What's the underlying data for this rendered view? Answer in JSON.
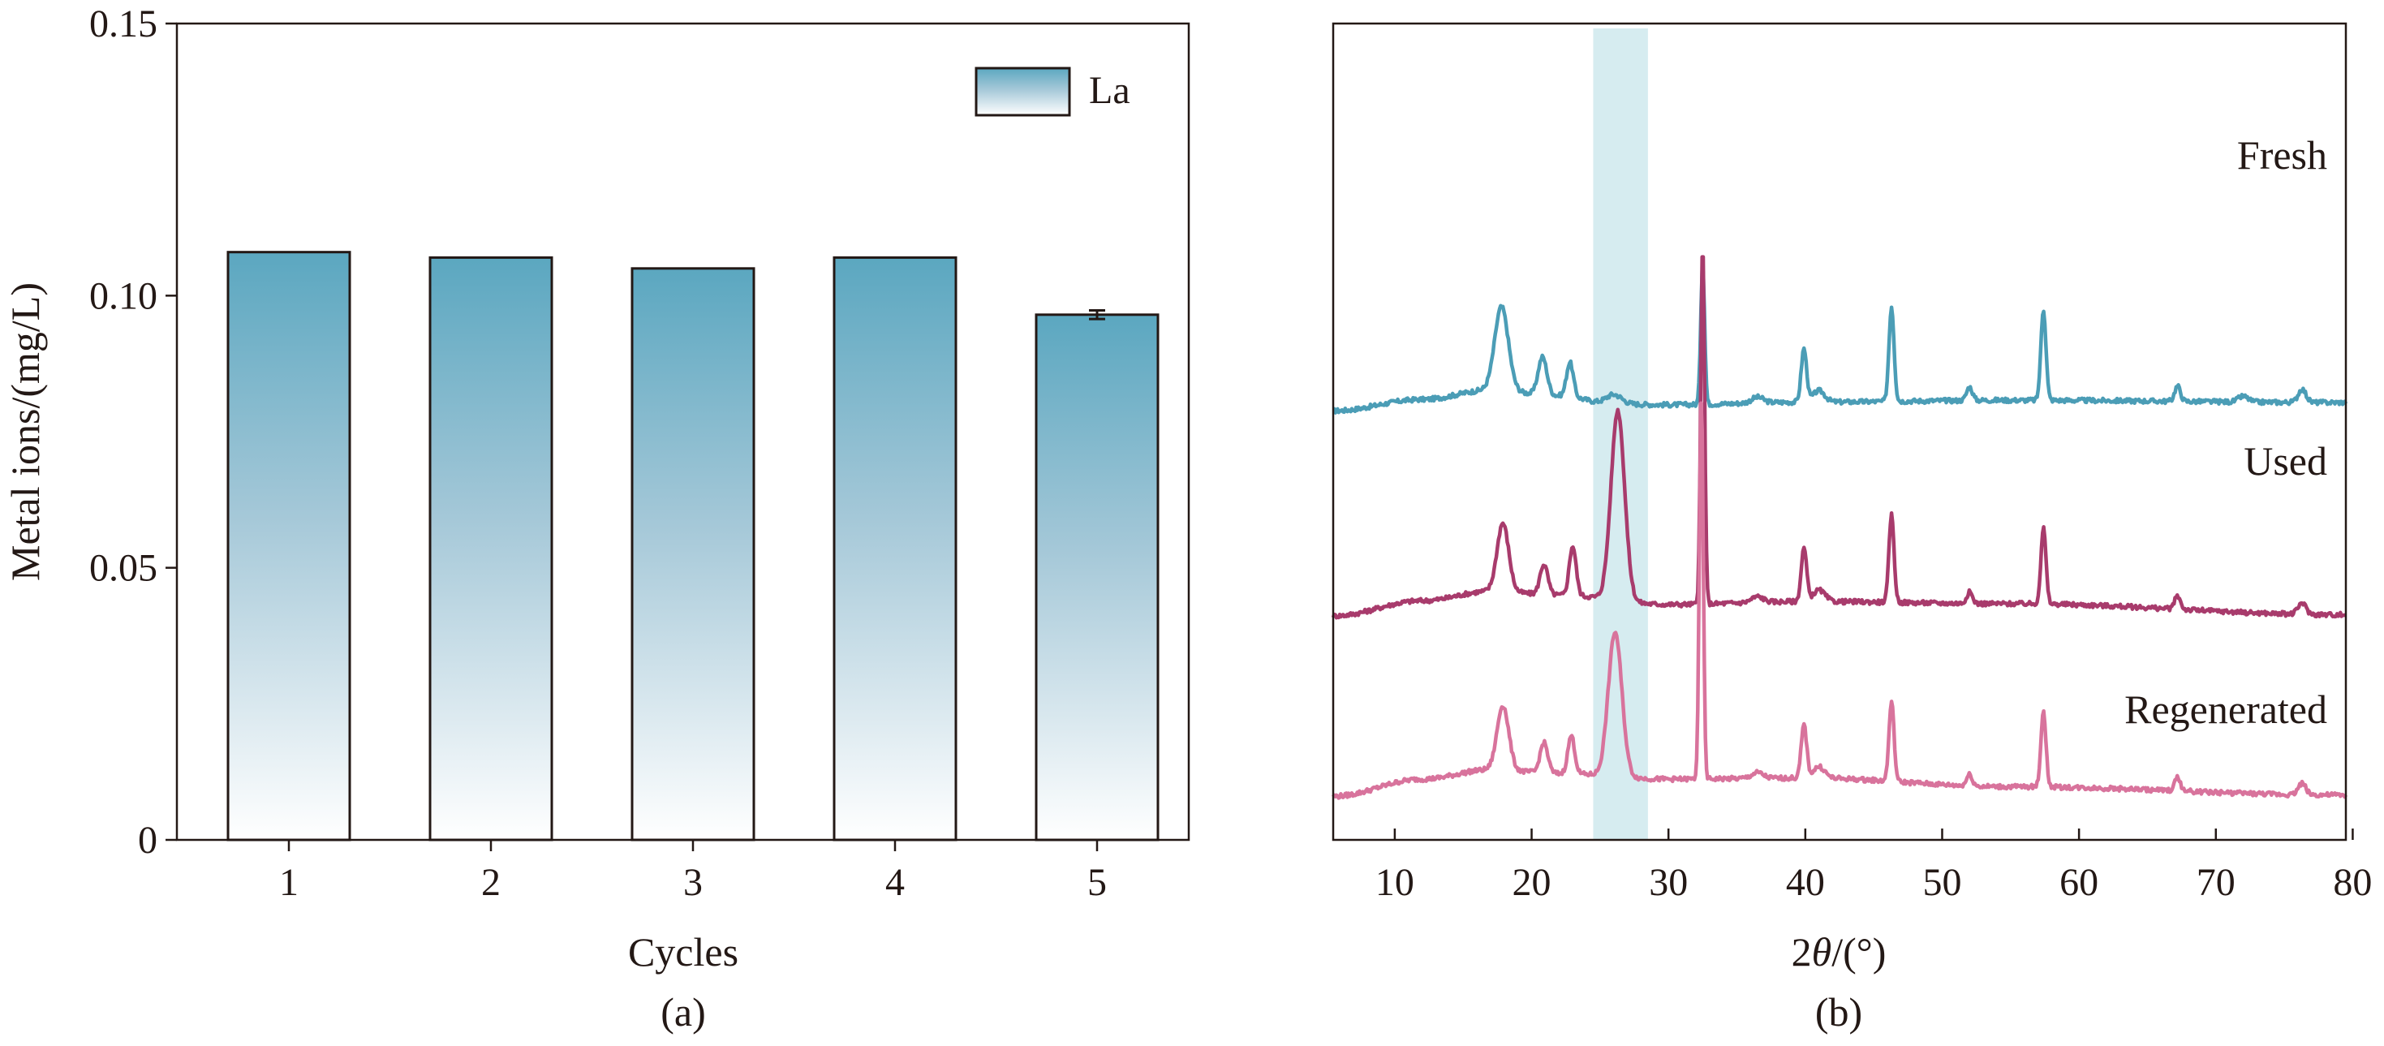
{
  "chart_data": [
    {
      "type": "bar",
      "panel_label": "(a)",
      "xlabel": "Cycles",
      "ylabel": "Metal ions/(mg/L)",
      "ylim": [
        0,
        0.15
      ],
      "yticks": [
        "0",
        "0.05",
        "0.10",
        "0.15"
      ],
      "categories": [
        "1",
        "2",
        "3",
        "4",
        "5"
      ],
      "series": [
        {
          "name": "La",
          "values": [
            0.108,
            0.107,
            0.105,
            0.107,
            0.0965
          ],
          "errors": [
            0,
            0,
            0,
            0,
            0.0008
          ]
        }
      ],
      "legend": "top-right",
      "colors": {
        "bar_top": "#5ba7c0",
        "bar_bottom": "#ffffff",
        "outline": "#231815"
      }
    },
    {
      "type": "line",
      "panel_label": "(b)",
      "xlabel_symbol": "θ",
      "xlabel_prefix": "2",
      "xlabel_suffix": "/(°)",
      "xlim": [
        5.5,
        79.5
      ],
      "xticks": [
        "10",
        "20",
        "30",
        "40",
        "50",
        "60",
        "70",
        "80"
      ],
      "highlight_band": [
        24.5,
        28.5
      ],
      "series": [
        {
          "name": "Fresh",
          "color": "#4b9db6",
          "baseline": 1.12,
          "bg": [
            [
              5.5,
              1.13
            ],
            [
              12,
              1.16
            ],
            [
              17,
              1.185
            ],
            [
              22,
              1.17
            ],
            [
              26,
              1.148
            ],
            [
              30,
              1.146
            ],
            [
              40,
              1.153
            ],
            [
              55,
              1.158
            ],
            [
              79.5,
              1.152
            ]
          ],
          "peaks": [
            [
              17.8,
              0.22,
              0.7
            ],
            [
              20.8,
              0.1,
              0.45
            ],
            [
              22.8,
              0.09,
              0.35
            ],
            [
              26,
              0.025,
              0.8
            ],
            [
              32.5,
              0.37,
              0.2
            ],
            [
              36.5,
              0.015,
              0.6
            ],
            [
              39.9,
              0.14,
              0.28
            ],
            [
              41,
              0.03,
              0.6
            ],
            [
              46.3,
              0.25,
              0.26
            ],
            [
              52,
              0.035,
              0.3
            ],
            [
              57.4,
              0.24,
              0.26
            ],
            [
              67.2,
              0.04,
              0.3
            ],
            [
              72,
              0.015,
              0.5
            ],
            [
              76.3,
              0.035,
              0.4
            ]
          ]
        },
        {
          "name": "Used",
          "color": "#a83b6c",
          "baseline": 0.59,
          "bg": [
            [
              5.5,
              0.59
            ],
            [
              12,
              0.63
            ],
            [
              17,
              0.655
            ],
            [
              22,
              0.645
            ],
            [
              30,
              0.62
            ],
            [
              40,
              0.628
            ],
            [
              55,
              0.622
            ],
            [
              79.5,
              0.593
            ]
          ],
          "peaks": [
            [
              17.9,
              0.18,
              0.6
            ],
            [
              20.9,
              0.08,
              0.4
            ],
            [
              23,
              0.13,
              0.35
            ],
            [
              26.3,
              0.5,
              0.7
            ],
            [
              32.5,
              0.95,
              0.2
            ],
            [
              36.5,
              0.015,
              0.6
            ],
            [
              39.9,
              0.14,
              0.28
            ],
            [
              41,
              0.03,
              0.6
            ],
            [
              46.3,
              0.23,
              0.26
            ],
            [
              52,
              0.03,
              0.3
            ],
            [
              57.4,
              0.2,
              0.26
            ],
            [
              67.2,
              0.035,
              0.3
            ],
            [
              76.3,
              0.03,
              0.4
            ]
          ]
        },
        {
          "name": "Regenerated",
          "color": "#d8739c",
          "baseline": 0.12,
          "bg": [
            [
              5.5,
              0.115
            ],
            [
              12,
              0.16
            ],
            [
              17,
              0.185
            ],
            [
              22,
              0.175
            ],
            [
              30,
              0.16
            ],
            [
              40,
              0.163
            ],
            [
              55,
              0.14
            ],
            [
              79.5,
              0.118
            ]
          ],
          "peaks": [
            [
              17.9,
              0.17,
              0.6
            ],
            [
              20.9,
              0.08,
              0.4
            ],
            [
              22.9,
              0.1,
              0.35
            ],
            [
              26.1,
              0.38,
              0.7
            ],
            [
              32.4,
              1.0,
              0.2
            ],
            [
              36.5,
              0.015,
              0.6
            ],
            [
              39.9,
              0.14,
              0.28
            ],
            [
              41,
              0.03,
              0.6
            ],
            [
              46.3,
              0.21,
              0.26
            ],
            [
              52,
              0.03,
              0.3
            ],
            [
              57.4,
              0.2,
              0.26
            ],
            [
              67.2,
              0.035,
              0.3
            ],
            [
              76.3,
              0.03,
              0.4
            ]
          ]
        }
      ],
      "colors": {
        "band": "#d6ecf0",
        "frame": "#231815"
      }
    }
  ]
}
